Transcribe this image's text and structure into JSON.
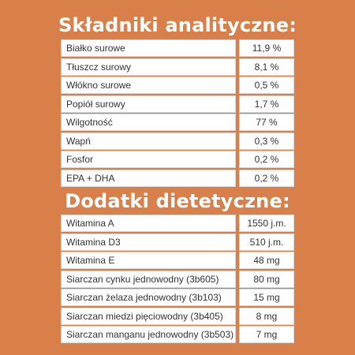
{
  "analytical": {
    "title": "Składniki analityczne:",
    "rows": [
      {
        "name": "Białko surowe",
        "value": "11,9 %"
      },
      {
        "name": "Tłuszcz surowy",
        "value": "8,1 %"
      },
      {
        "name": "Włókno surowe",
        "value": "0,5 %"
      },
      {
        "name": "Popiół surowy",
        "value": "1,7 %"
      },
      {
        "name": "Wilgotność",
        "value": "77 %"
      },
      {
        "name": "Wapń",
        "value": "0,3 %"
      },
      {
        "name": "Fosfor",
        "value": "0,2 %"
      },
      {
        "name": "EPA + DHA",
        "value": "0,2 %"
      }
    ]
  },
  "additives": {
    "title": "Dodatki dietetyczne:",
    "rows": [
      {
        "name": "Witamina A",
        "value": "1550 j.m."
      },
      {
        "name": "Witamina D3",
        "value": "510 j.m."
      },
      {
        "name": "Witamina E",
        "value": "48 mg"
      },
      {
        "name": "Siarczan cynku jednowodny (3b605)",
        "value": "80 mg"
      },
      {
        "name": "Siarczan żelaza jednowodny (3b103)",
        "value": "15 mg"
      },
      {
        "name": "Siarczan miedzi pięciowodny (3b405)",
        "value": "8 mg"
      },
      {
        "name": "Siarczan manganu jednowodny (3b503)",
        "value": "7 mg"
      }
    ]
  },
  "colors": {
    "background": "#d97f4a",
    "heading": "#ffffff",
    "cell": "#ffffff"
  }
}
